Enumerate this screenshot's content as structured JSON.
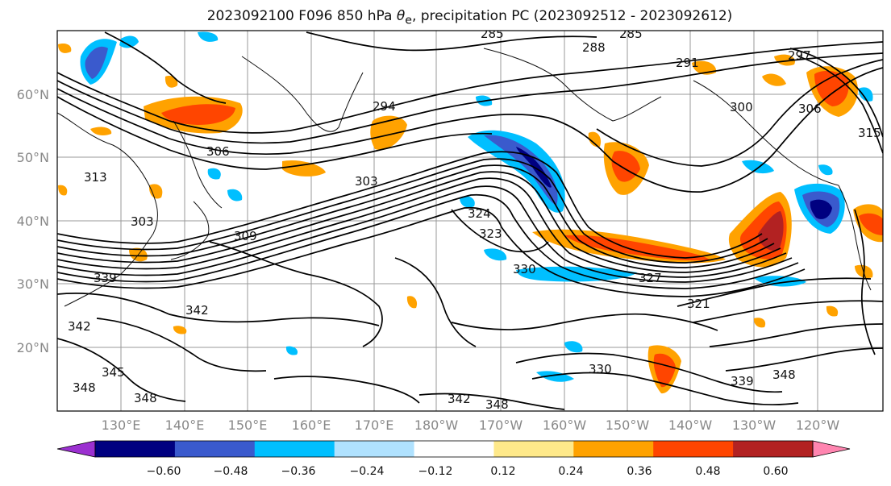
{
  "title_pre": "2023092100 F096 850 hPa ",
  "title_theta": "θ",
  "title_sub": "e",
  "title_post": ", precipitation PC (2023092512 - 2023092612)",
  "lat_labels": [
    "60°N",
    "50°N",
    "40°N",
    "30°N",
    "20°N"
  ],
  "lon_labels": [
    "130°E",
    "140°E",
    "150°E",
    "160°E",
    "170°E",
    "180°W",
    "170°W",
    "160°W",
    "150°W",
    "140°W",
    "130°W",
    "120°W"
  ],
  "colorbar": {
    "colors": [
      "#9b30d0",
      "#000080",
      "#3a5acd",
      "#00bfff",
      "#b0e2ff",
      "#ffffff",
      "#ffe98a",
      "#ffa200",
      "#ff4500",
      "#b22222",
      "#ff85b0"
    ],
    "tick_labels": [
      "−0.60",
      "−0.48",
      "−0.36",
      "−0.24",
      "−0.12",
      "0.12",
      "0.24",
      "0.36",
      "0.48",
      "0.60"
    ]
  },
  "contour_labels": [
    "285",
    "285",
    "288",
    "291",
    "297",
    "294",
    "300",
    "306",
    "306",
    "315",
    "313",
    "303",
    "303",
    "309",
    "324",
    "323",
    "330",
    "327",
    "321",
    "330",
    "339",
    "342",
    "342",
    "345",
    "348",
    "348",
    "342",
    "348",
    "339",
    "348"
  ]
}
